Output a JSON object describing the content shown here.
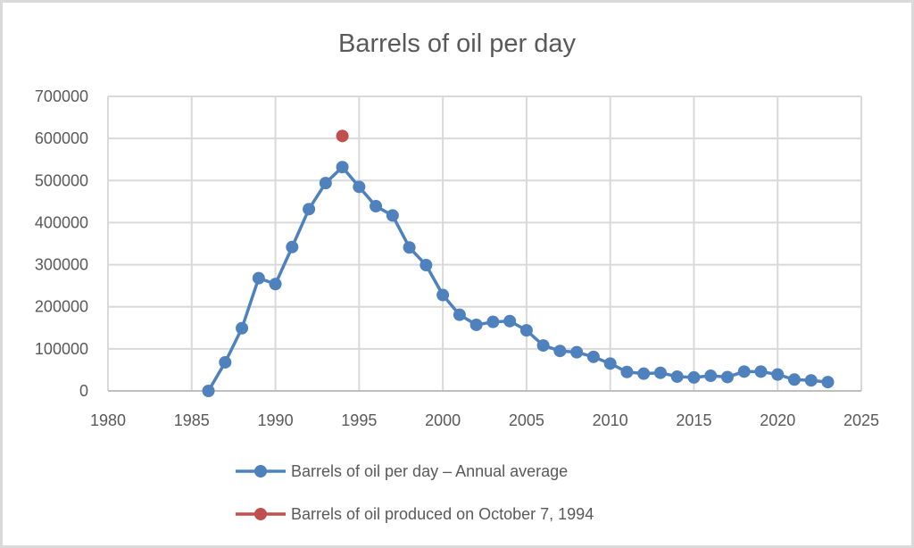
{
  "chart_data": {
    "type": "line",
    "title": "Barrels of oil per day",
    "xlabel": "",
    "ylabel": "",
    "xlim": [
      1980,
      2025
    ],
    "ylim": [
      0,
      700000
    ],
    "x_ticks": [
      1980,
      1985,
      1990,
      1995,
      2000,
      2005,
      2010,
      2015,
      2020,
      2025
    ],
    "x_tick_labels": [
      "1980",
      "1985",
      "1990",
      "1995",
      "2000",
      "2005",
      "2010",
      "2015",
      "2020",
      "2025"
    ],
    "y_ticks": [
      0,
      100000,
      200000,
      300000,
      400000,
      500000,
      600000,
      700000
    ],
    "y_tick_labels": [
      "0",
      "100000",
      "200000",
      "300000",
      "400000",
      "500000",
      "600000",
      "700000"
    ],
    "grid": true,
    "legend_position": "bottom",
    "series": [
      {
        "name": "Barrels of oil per day – Annual average",
        "color": "#4F81BD",
        "marker": "circle",
        "line": true,
        "x": [
          1986,
          1987,
          1988,
          1989,
          1990,
          1991,
          1992,
          1993,
          1994,
          1995,
          1996,
          1997,
          1998,
          1999,
          2000,
          2001,
          2002,
          2003,
          2004,
          2005,
          2006,
          2007,
          2008,
          2009,
          2010,
          2011,
          2012,
          2013,
          2014,
          2015,
          2016,
          2017,
          2018,
          2019,
          2020,
          2021,
          2022,
          2023
        ],
        "values": [
          0,
          68000,
          149000,
          268000,
          254000,
          342000,
          432000,
          494000,
          532000,
          485000,
          439000,
          417000,
          341000,
          299000,
          228000,
          181000,
          157000,
          164000,
          166000,
          144000,
          108000,
          95000,
          92000,
          81000,
          65000,
          45000,
          41000,
          43000,
          34000,
          32000,
          36000,
          33000,
          46000,
          46000,
          39000,
          27000,
          25000,
          21000
        ]
      },
      {
        "name": "Barrels of oil produced on October 7, 1994",
        "color": "#C0504D",
        "marker": "circle",
        "line": false,
        "x": [
          1994
        ],
        "values": [
          606000
        ]
      }
    ]
  }
}
